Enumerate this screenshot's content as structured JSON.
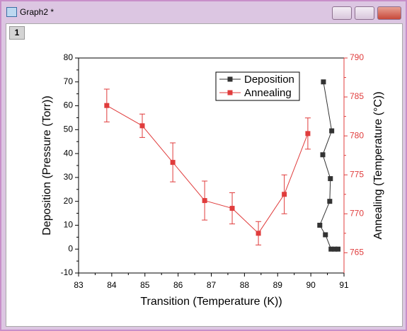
{
  "window": {
    "title": "Graph2 *",
    "layer": "1"
  },
  "chart_data": {
    "type": "line",
    "xlabel": "Transition (Temperature (K))",
    "ylabel": "Deposition (Pressure (Torr))",
    "y2label": "Annealing (Temperature (°C))",
    "xlim": [
      83,
      91
    ],
    "xticks": [
      83,
      84,
      85,
      86,
      87,
      88,
      89,
      90,
      91
    ],
    "ylim": [
      -10,
      80
    ],
    "yticks": [
      -10,
      0,
      10,
      20,
      30,
      40,
      50,
      60,
      70,
      80
    ],
    "y2lim": [
      762.4,
      790
    ],
    "y2ticks": [
      765,
      770,
      775,
      780,
      785,
      790
    ],
    "y2color": "#e03c3c",
    "legend": "upper right",
    "series": [
      {
        "name": "Deposition",
        "color": "#333333",
        "x": [
          90.38,
          90.63,
          90.36,
          90.59,
          90.57,
          90.27,
          90.44,
          90.61,
          90.72,
          90.82
        ],
        "values": [
          70,
          49.5,
          39.5,
          29.5,
          20,
          10,
          6,
          0,
          0,
          0
        ]
      },
      {
        "name": "Annealing",
        "color": "#e03c3c",
        "axis": "y2",
        "x": [
          83.85,
          84.92,
          85.84,
          86.8,
          87.63,
          88.42,
          89.2,
          89.91
        ],
        "values": [
          783.9,
          781.3,
          776.6,
          771.7,
          770.7,
          767.5,
          772.5,
          780.3
        ],
        "errors": [
          2.1,
          1.5,
          2.5,
          2.5,
          2,
          1.5,
          2.5,
          2
        ]
      }
    ]
  }
}
